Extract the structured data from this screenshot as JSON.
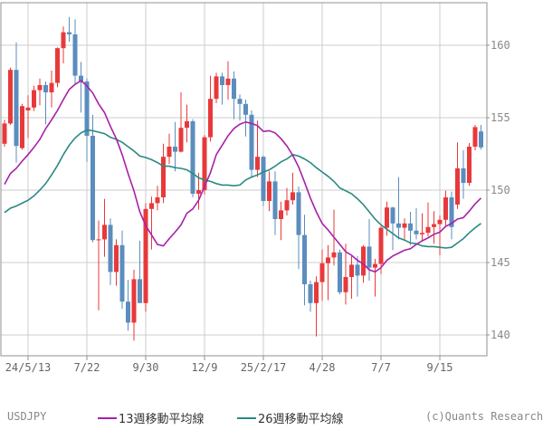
{
  "series_label": "USDJPY",
  "watermark": "(c)Quants Research",
  "legend": {
    "ma13_label": "13週移動平均線",
    "ma26_label": "26週移動平均線"
  },
  "colors": {
    "up_candle": "#e8393a",
    "down_candle": "#5b8dbe",
    "ma13": "#a820a8",
    "ma26": "#2a8a82",
    "grid": "#cccccc",
    "border": "#909090",
    "y_axis_text": "#888888",
    "x_axis_text": "#666666"
  },
  "chart_data": {
    "type": "candlestick",
    "title": "USDJPY weekly candles with 13-week and 26-week moving averages",
    "legend_position": "bottom",
    "grid": true,
    "y_ticks": [
      160,
      155,
      150,
      145,
      140
    ],
    "ylim": [
      138.6,
      162.9
    ],
    "x_ticks": [
      {
        "index": 4,
        "label": "24/5/13"
      },
      {
        "index": 14,
        "label": "7/22"
      },
      {
        "index": 24,
        "label": "9/30"
      },
      {
        "index": 34,
        "label": "12/9"
      },
      {
        "index": 44,
        "label": "25/2/17"
      },
      {
        "index": 54,
        "label": "4/28"
      },
      {
        "index": 64,
        "label": "7/7"
      },
      {
        "index": 74,
        "label": "9/15"
      }
    ],
    "candles_format": [
      "open",
      "high",
      "low",
      "close"
    ],
    "candles": [
      [
        153.2,
        154.85,
        153.0,
        154.6
      ],
      [
        154.6,
        158.45,
        154.5,
        158.3
      ],
      [
        158.3,
        160.2,
        151.9,
        153.05
      ],
      [
        152.9,
        155.95,
        152.8,
        155.8
      ],
      [
        155.5,
        156.55,
        153.6,
        155.7
      ],
      [
        155.7,
        157.2,
        155.45,
        156.9
      ],
      [
        156.9,
        157.7,
        155.85,
        157.25
      ],
      [
        157.25,
        157.5,
        154.55,
        156.75
      ],
      [
        156.75,
        158.25,
        155.7,
        157.4
      ],
      [
        157.4,
        159.85,
        157.1,
        159.8
      ],
      [
        159.8,
        161.3,
        158.75,
        160.9
      ],
      [
        160.9,
        161.95,
        160.25,
        160.75
      ],
      [
        160.75,
        161.8,
        157.3,
        157.9
      ],
      [
        157.9,
        158.85,
        155.35,
        157.5
      ],
      [
        157.5,
        157.7,
        151.95,
        153.75
      ],
      [
        153.75,
        155.2,
        146.4,
        146.55
      ],
      [
        146.55,
        147.9,
        141.7,
        146.6
      ],
      [
        146.6,
        149.4,
        145.4,
        147.6
      ],
      [
        147.6,
        148.05,
        143.45,
        144.35
      ],
      [
        144.35,
        146.6,
        143.4,
        146.2
      ],
      [
        146.2,
        147.2,
        141.8,
        142.3
      ],
      [
        142.3,
        143.8,
        140.3,
        140.85
      ],
      [
        140.85,
        144.5,
        139.6,
        143.85
      ],
      [
        143.85,
        146.5,
        142.9,
        142.2
      ],
      [
        142.2,
        149.1,
        141.6,
        148.7
      ],
      [
        148.7,
        149.55,
        145.9,
        149.1
      ],
      [
        149.1,
        150.3,
        148.6,
        149.5
      ],
      [
        149.5,
        153.2,
        149.1,
        152.3
      ],
      [
        152.3,
        153.9,
        151.8,
        153.0
      ],
      [
        153.0,
        154.7,
        151.3,
        152.65
      ],
      [
        152.65,
        156.75,
        152.6,
        154.3
      ],
      [
        154.3,
        155.9,
        153.3,
        154.75
      ],
      [
        154.75,
        154.9,
        149.5,
        149.75
      ],
      [
        149.75,
        151.2,
        148.65,
        150.0
      ],
      [
        150.0,
        153.8,
        149.7,
        153.65
      ],
      [
        153.65,
        157.9,
        153.35,
        156.3
      ],
      [
        156.3,
        158.1,
        156.0,
        157.85
      ],
      [
        157.85,
        158.1,
        155.9,
        157.25
      ],
      [
        157.25,
        158.9,
        156.25,
        157.7
      ],
      [
        157.7,
        158.2,
        154.9,
        156.3
      ],
      [
        156.3,
        156.6,
        154.8,
        155.95
      ],
      [
        155.95,
        156.25,
        153.7,
        155.2
      ],
      [
        155.2,
        155.5,
        150.9,
        151.4
      ],
      [
        151.4,
        154.8,
        150.9,
        152.3
      ],
      [
        152.3,
        152.4,
        148.9,
        149.25
      ],
      [
        149.25,
        151.3,
        148.55,
        150.6
      ],
      [
        150.6,
        151.3,
        146.9,
        148.0
      ],
      [
        148.0,
        149.2,
        146.55,
        148.6
      ],
      [
        148.6,
        150.15,
        148.25,
        149.3
      ],
      [
        149.3,
        151.2,
        149.0,
        149.85
      ],
      [
        149.85,
        150.25,
        144.55,
        146.9
      ],
      [
        146.9,
        148.3,
        142.05,
        143.5
      ],
      [
        143.5,
        143.75,
        141.6,
        142.2
      ],
      [
        142.2,
        144.05,
        139.9,
        143.65
      ],
      [
        143.65,
        145.9,
        142.35,
        144.95
      ],
      [
        144.95,
        146.2,
        142.4,
        145.35
      ],
      [
        145.35,
        148.65,
        144.8,
        145.7
      ],
      [
        145.7,
        145.9,
        142.8,
        142.95
      ],
      [
        142.95,
        146.3,
        142.1,
        144.0
      ],
      [
        144.0,
        145.45,
        142.5,
        144.85
      ],
      [
        144.85,
        145.45,
        142.65,
        144.1
      ],
      [
        144.1,
        146.2,
        143.6,
        146.1
      ],
      [
        146.1,
        148.0,
        143.75,
        144.65
      ],
      [
        144.65,
        145.25,
        142.65,
        144.9
      ],
      [
        144.9,
        147.5,
        144.2,
        147.4
      ],
      [
        147.4,
        149.2,
        146.85,
        148.8
      ],
      [
        148.8,
        148.85,
        145.85,
        147.7
      ],
      [
        147.7,
        150.9,
        146.6,
        147.4
      ],
      [
        147.4,
        148.05,
        146.6,
        147.7
      ],
      [
        147.7,
        148.5,
        146.2,
        147.2
      ],
      [
        147.2,
        148.75,
        146.6,
        146.95
      ],
      [
        146.95,
        148.4,
        146.5,
        147.05
      ],
      [
        147.05,
        149.15,
        146.8,
        147.45
      ],
      [
        147.45,
        148.55,
        146.3,
        147.65
      ],
      [
        147.65,
        148.25,
        145.5,
        147.95
      ],
      [
        147.95,
        149.95,
        147.45,
        149.5
      ],
      [
        149.5,
        149.9,
        146.6,
        147.45
      ],
      [
        149.0,
        153.3,
        148.7,
        151.5
      ],
      [
        151.5,
        152.75,
        149.4,
        150.5
      ],
      [
        150.5,
        153.25,
        150.3,
        153.0
      ],
      [
        153.0,
        154.5,
        152.75,
        154.35
      ],
      [
        154.05,
        154.5,
        152.8,
        152.95
      ]
    ],
    "series": [
      {
        "name": "13週移動平均線",
        "color": "#a820a8",
        "values": [
          150.4,
          151.15,
          151.5,
          152.0,
          152.45,
          152.95,
          153.5,
          154.25,
          154.85,
          155.5,
          156.25,
          156.95,
          157.3,
          157.55,
          157.2,
          156.7,
          155.95,
          155.35,
          154.4,
          153.55,
          152.45,
          151.15,
          149.95,
          148.5,
          147.55,
          146.9,
          146.25,
          146.15,
          146.65,
          147.1,
          147.6,
          148.4,
          148.7,
          149.3,
          150.25,
          151.2,
          152.45,
          153.1,
          153.75,
          154.25,
          154.55,
          154.7,
          154.6,
          154.45,
          154.05,
          154.1,
          153.95,
          153.55,
          153.05,
          152.4,
          151.6,
          150.55,
          149.45,
          148.5,
          147.7,
          147.25,
          146.75,
          146.25,
          145.75,
          145.5,
          145.15,
          144.9,
          144.5,
          144.35,
          144.65,
          145.15,
          145.45,
          145.65,
          145.85,
          145.95,
          146.25,
          146.5,
          146.7,
          146.95,
          147.1,
          147.5,
          147.7,
          148.0,
          148.1,
          148.55,
          149.05,
          149.45
        ]
      },
      {
        "name": "26週移動平均線",
        "color": "#2a8a82",
        "values": [
          148.45,
          148.75,
          148.9,
          149.1,
          149.3,
          149.6,
          150.0,
          150.45,
          151.05,
          151.7,
          152.45,
          153.1,
          153.6,
          153.95,
          154.15,
          154.1,
          154.0,
          153.9,
          153.65,
          153.5,
          153.3,
          153.0,
          152.7,
          152.35,
          152.25,
          152.1,
          151.9,
          151.65,
          151.65,
          151.55,
          151.5,
          151.4,
          151.15,
          150.85,
          150.7,
          150.6,
          150.45,
          150.35,
          150.35,
          150.3,
          150.35,
          150.7,
          150.9,
          151.05,
          151.25,
          151.4,
          151.65,
          151.95,
          152.15,
          152.45,
          152.35,
          152.15,
          151.9,
          151.55,
          151.25,
          150.95,
          150.6,
          150.15,
          149.95,
          149.75,
          149.4,
          149.0,
          148.5,
          148.0,
          147.6,
          147.3,
          147.0,
          146.7,
          146.55,
          146.35,
          146.3,
          146.15,
          146.1,
          146.1,
          146.05,
          146.0,
          146.05,
          146.35,
          146.65,
          147.05,
          147.4,
          147.7
        ]
      }
    ]
  }
}
